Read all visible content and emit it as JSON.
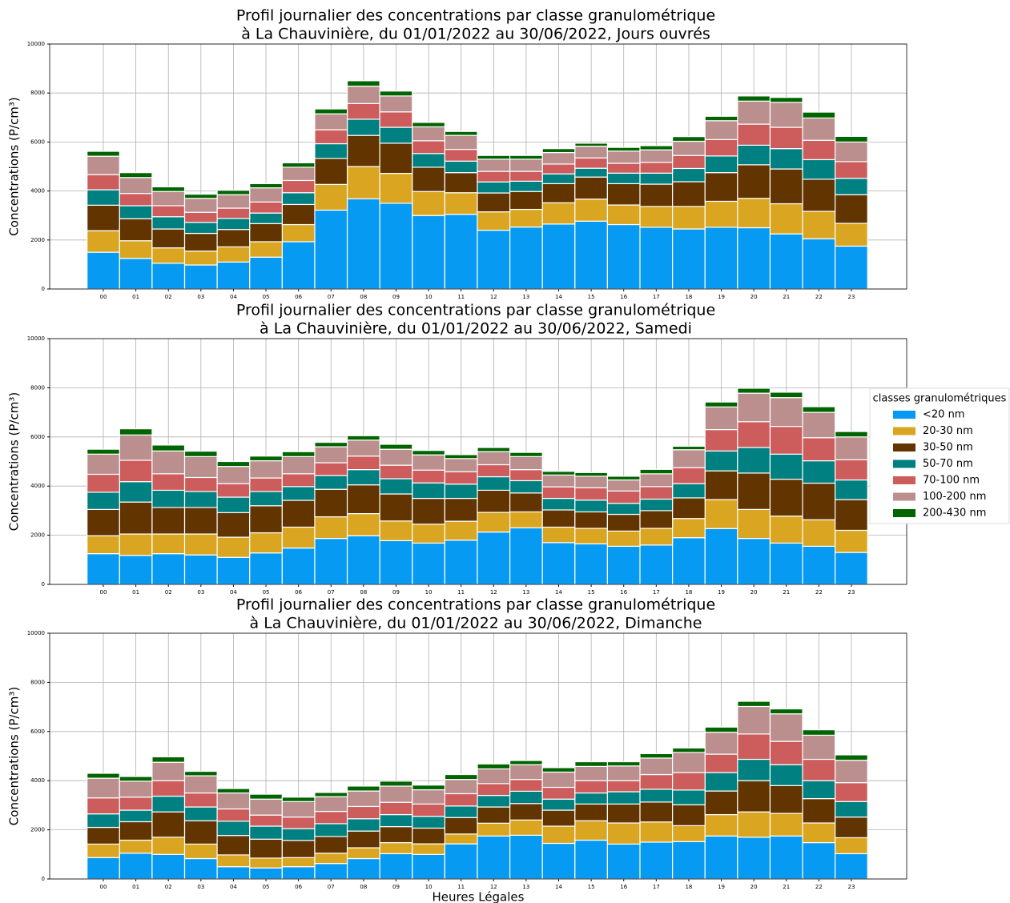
{
  "chart_data": [
    {
      "type": "bar",
      "stacked": true,
      "title": [
        "Profil journalier des concentrations par classe granulométrique",
        "à La Chauvinière, du 01/01/2022 au 30/06/2022, Jours ouvrés"
      ],
      "ylabel": "Concentrations (P/cm³)",
      "categories": [
        "00",
        "01",
        "02",
        "03",
        "04",
        "05",
        "06",
        "07",
        "08",
        "09",
        "10",
        "11",
        "12",
        "13",
        "14",
        "15",
        "16",
        "17",
        "18",
        "19",
        "20",
        "21",
        "22",
        "23"
      ],
      "ylim": [
        0,
        10000
      ],
      "yticks": [
        0,
        2000,
        4000,
        6000,
        8000,
        10000
      ],
      "grid": true,
      "series": [
        {
          "color": "#069af3",
          "values": [
            1500,
            1250,
            1050,
            980,
            1100,
            1300,
            1930,
            3220,
            3680,
            3500,
            3000,
            3050,
            2400,
            2530,
            2650,
            2770,
            2630,
            2520,
            2450,
            2520,
            2500,
            2250,
            2050,
            1750
          ]
        },
        {
          "color": "#daa520",
          "values": [
            880,
            720,
            630,
            570,
            620,
            630,
            700,
            1050,
            1320,
            1220,
            980,
            880,
            750,
            720,
            870,
            900,
            800,
            850,
            920,
            1060,
            1200,
            1230,
            1120,
            930
          ]
        },
        {
          "color": "#613400",
          "values": [
            1040,
            900,
            770,
            720,
            710,
            740,
            820,
            1060,
            1270,
            1230,
            990,
            820,
            770,
            730,
            780,
            900,
            870,
            910,
            1010,
            1170,
            1370,
            1420,
            1310,
            1170
          ]
        },
        {
          "color": "#008080",
          "values": [
            630,
            530,
            500,
            450,
            450,
            430,
            480,
            600,
            660,
            650,
            560,
            470,
            450,
            420,
            400,
            360,
            430,
            450,
            540,
            680,
            800,
            830,
            800,
            670
          ]
        },
        {
          "color": "#cd5c5c",
          "values": [
            620,
            500,
            450,
            410,
            420,
            450,
            500,
            570,
            640,
            630,
            520,
            480,
            430,
            400,
            400,
            420,
            400,
            440,
            530,
            670,
            860,
            870,
            790,
            680
          ]
        },
        {
          "color": "#bc8f8f",
          "values": [
            750,
            650,
            580,
            570,
            550,
            580,
            540,
            650,
            710,
            650,
            570,
            570,
            500,
            500,
            470,
            480,
            500,
            510,
            580,
            770,
            940,
            1020,
            910,
            800
          ]
        },
        {
          "color": "#006400",
          "values": [
            200,
            200,
            190,
            170,
            180,
            170,
            180,
            200,
            220,
            200,
            180,
            160,
            150,
            150,
            160,
            120,
            150,
            170,
            190,
            180,
            210,
            200,
            240,
            230
          ]
        }
      ]
    },
    {
      "type": "bar",
      "stacked": true,
      "title": [
        "Profil journalier des concentrations par classe granulométrique",
        "à La Chauvinière, du 01/01/2022 au 30/06/2022, Samedi"
      ],
      "ylabel": "Concentrations (P/cm³)",
      "categories": [
        "00",
        "01",
        "02",
        "03",
        "04",
        "05",
        "06",
        "07",
        "08",
        "09",
        "10",
        "11",
        "12",
        "13",
        "14",
        "15",
        "16",
        "17",
        "18",
        "19",
        "20",
        "21",
        "22",
        "23"
      ],
      "ylim": [
        0,
        10000
      ],
      "yticks": [
        0,
        2000,
        4000,
        6000,
        8000,
        10000
      ],
      "grid": true,
      "legend_title": "classes granulométriques",
      "legend": "right",
      "series": [
        {
          "name": "<20 nm",
          "color": "#069af3",
          "values": [
            1250,
            1180,
            1250,
            1200,
            1100,
            1280,
            1480,
            1870,
            1980,
            1780,
            1680,
            1800,
            2130,
            2300,
            1700,
            1650,
            1550,
            1600,
            1900,
            2270,
            1870,
            1680,
            1550,
            1300
          ]
        },
        {
          "name": "20-30 nm",
          "color": "#daa520",
          "values": [
            730,
            870,
            800,
            850,
            820,
            820,
            850,
            880,
            900,
            800,
            770,
            770,
            800,
            650,
            630,
            630,
            620,
            680,
            780,
            1180,
            1180,
            1100,
            1080,
            900
          ]
        },
        {
          "name": "30-50 nm",
          "color": "#613400",
          "values": [
            1070,
            1300,
            1080,
            1080,
            1000,
            1100,
            1090,
            1120,
            1170,
            1100,
            1050,
            930,
            900,
            770,
            700,
            670,
            680,
            720,
            840,
            1170,
            1480,
            1500,
            1490,
            1250
          ]
        },
        {
          "name": "50-70 nm",
          "color": "#008080",
          "values": [
            700,
            830,
            700,
            650,
            630,
            580,
            560,
            560,
            620,
            620,
            630,
            580,
            550,
            500,
            470,
            480,
            450,
            470,
            580,
            810,
            1040,
            1020,
            910,
            800
          ]
        },
        {
          "name": "70-100 nm",
          "color": "#cd5c5c",
          "values": [
            730,
            870,
            670,
            570,
            550,
            550,
            520,
            520,
            550,
            550,
            520,
            500,
            490,
            450,
            470,
            500,
            500,
            510,
            650,
            870,
            1050,
            1130,
            940,
            820
          ]
        },
        {
          "name": "100-200 nm",
          "color": "#bc8f8f",
          "values": [
            820,
            1030,
            930,
            850,
            700,
            700,
            700,
            650,
            650,
            650,
            620,
            540,
            530,
            530,
            480,
            470,
            450,
            520,
            730,
            920,
            1160,
            1170,
            1030,
            930
          ]
        },
        {
          "name": "200-430 nm",
          "color": "#006400",
          "values": [
            200,
            250,
            240,
            220,
            200,
            190,
            200,
            180,
            180,
            200,
            180,
            160,
            170,
            170,
            150,
            150,
            150,
            180,
            140,
            200,
            200,
            220,
            230,
            220
          ]
        }
      ]
    },
    {
      "type": "bar",
      "stacked": true,
      "title": [
        "Profil journalier des concentrations par classe granulométrique",
        "à La Chauvinière, du 01/01/2022 au 30/06/2022, Dimanche"
      ],
      "ylabel": "Concentrations (P/cm³)",
      "xlabel": "Heures Légales",
      "categories": [
        "00",
        "01",
        "02",
        "03",
        "04",
        "05",
        "06",
        "07",
        "08",
        "09",
        "10",
        "11",
        "12",
        "13",
        "14",
        "15",
        "16",
        "17",
        "18",
        "19",
        "20",
        "21",
        "22",
        "23"
      ],
      "ylim": [
        0,
        10000
      ],
      "yticks": [
        0,
        2000,
        4000,
        6000,
        8000,
        10000
      ],
      "grid": true,
      "series": [
        {
          "color": "#069af3",
          "values": [
            870,
            1050,
            1000,
            830,
            500,
            450,
            500,
            630,
            830,
            1030,
            1000,
            1430,
            1750,
            1780,
            1450,
            1580,
            1420,
            1500,
            1520,
            1750,
            1700,
            1750,
            1480,
            1030
          ]
        },
        {
          "color": "#daa520",
          "values": [
            550,
            530,
            700,
            590,
            480,
            400,
            370,
            420,
            440,
            450,
            430,
            400,
            520,
            620,
            700,
            790,
            860,
            820,
            650,
            870,
            1030,
            920,
            800,
            650
          ]
        },
        {
          "color": "#613400",
          "values": [
            680,
            750,
            1030,
            950,
            790,
            770,
            700,
            680,
            680,
            650,
            640,
            670,
            660,
            670,
            650,
            680,
            770,
            810,
            850,
            960,
            1270,
            1130,
            990,
            840
          ]
        },
        {
          "color": "#008080",
          "values": [
            550,
            470,
            640,
            560,
            580,
            530,
            480,
            520,
            500,
            490,
            480,
            470,
            470,
            500,
            450,
            450,
            500,
            520,
            600,
            750,
            870,
            850,
            730,
            630
          ]
        },
        {
          "color": "#cd5c5c",
          "values": [
            650,
            530,
            630,
            570,
            500,
            450,
            470,
            500,
            500,
            500,
            500,
            500,
            480,
            480,
            480,
            500,
            450,
            600,
            710,
            750,
            1030,
            950,
            870,
            770
          ]
        },
        {
          "color": "#bc8f8f",
          "values": [
            800,
            650,
            750,
            700,
            650,
            650,
            630,
            600,
            630,
            660,
            580,
            580,
            600,
            600,
            620,
            580,
            600,
            670,
            820,
            890,
            1120,
            1120,
            980,
            910
          ]
        },
        {
          "color": "#006400",
          "values": [
            200,
            190,
            220,
            180,
            180,
            200,
            180,
            170,
            200,
            200,
            190,
            200,
            200,
            170,
            180,
            190,
            170,
            180,
            180,
            210,
            210,
            200,
            220,
            220
          ]
        }
      ]
    }
  ]
}
